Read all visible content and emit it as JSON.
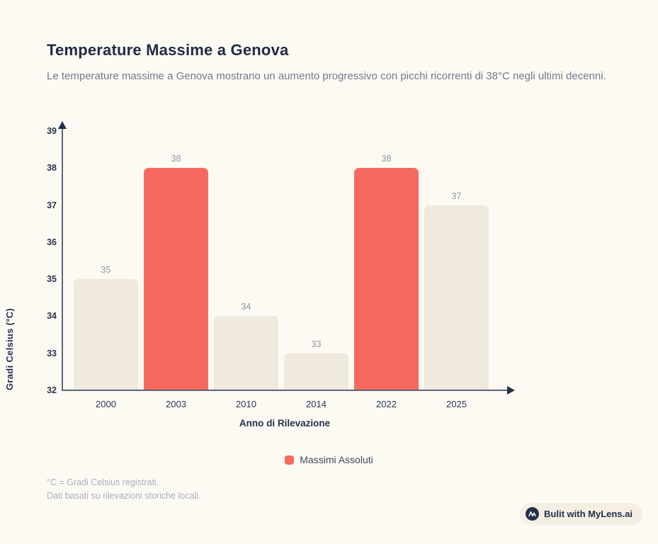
{
  "page": {
    "title": "Temperature Massime a Genova",
    "subtitle": "Le temperature massime a Genova mostrano un aumento progressivo con picchi ricorrenti di 38°C negli ultimi decenni.",
    "footnotes": [
      "°C = Gradi Celsius registrati.",
      "Dati basati su rilevazioni storiche locali."
    ],
    "badge": {
      "label": "Bulit with MyLens.ai"
    }
  },
  "chart_data": {
    "type": "bar",
    "title": "Temperature Massime a Genova",
    "categories": [
      "2000",
      "2003",
      "2010",
      "2014",
      "2022",
      "2025"
    ],
    "values": [
      35,
      38,
      34,
      33,
      38,
      37
    ],
    "highlighted": [
      false,
      true,
      false,
      false,
      true,
      false
    ],
    "xlabel": "Anno di Rilevazione",
    "ylabel": "Gradi Celsius (°C)",
    "ylim": [
      32,
      39
    ],
    "yticks": [
      32,
      33,
      34,
      35,
      36,
      37,
      38,
      39
    ],
    "grid": false,
    "legend_position": "bottom",
    "legend": [
      {
        "label": "Massimi Assoluti",
        "color": "#F7695F"
      }
    ],
    "colors": {
      "bar_default": "#F0E9DD",
      "bar_highlight": "#F7695F",
      "value_label": "#8D95A5",
      "axis": "#5D6579",
      "tick_label": "#2A3550"
    }
  }
}
